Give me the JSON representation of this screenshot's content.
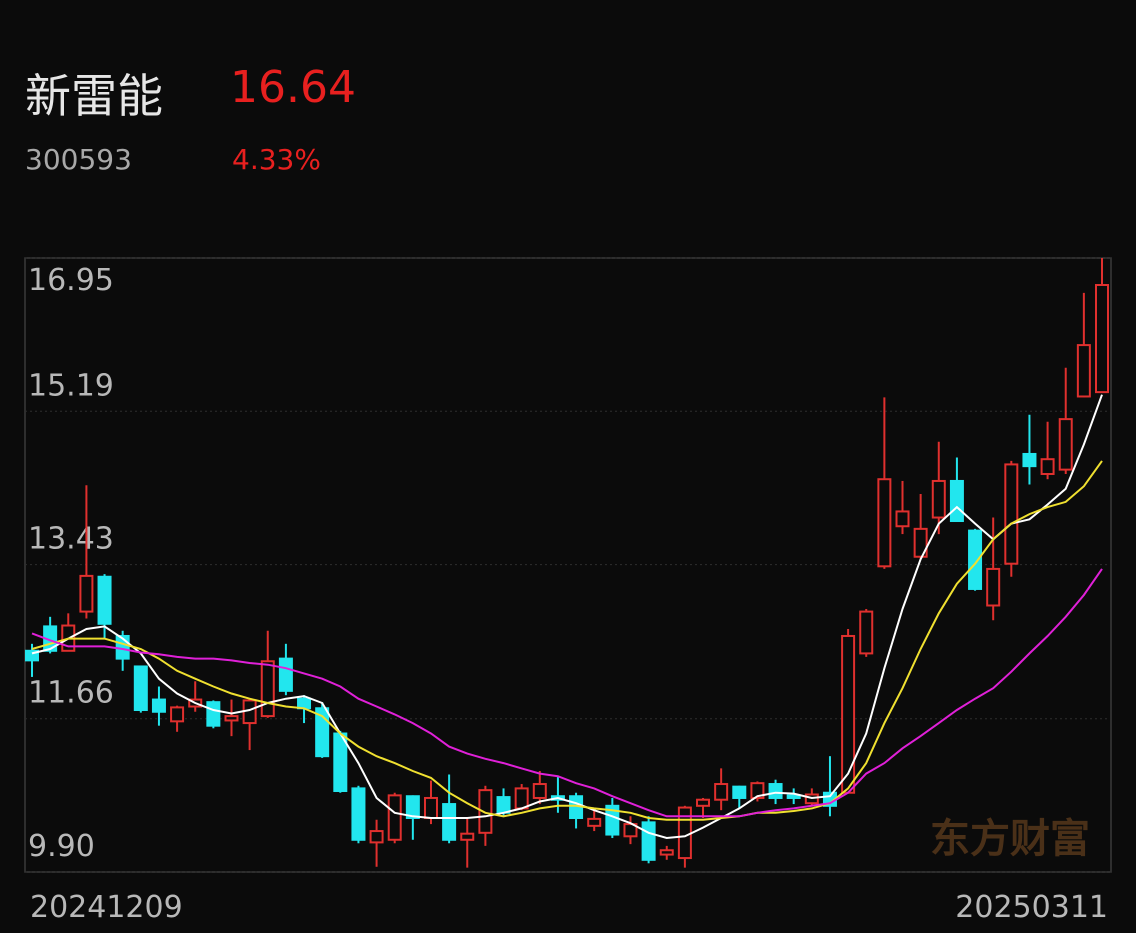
{
  "header": {
    "name": "新雷能",
    "price": "16.64",
    "code": "300593",
    "change": "4.33%"
  },
  "chart_data": {
    "type": "candlestick",
    "categories": [
      "20241209",
      null,
      null,
      null,
      null,
      null,
      null,
      null,
      null,
      null,
      null,
      null,
      null,
      null,
      null,
      null,
      null,
      null,
      null,
      null,
      null,
      null,
      null,
      null,
      null,
      null,
      null,
      null,
      null,
      null,
      null,
      null,
      null,
      null,
      null,
      null,
      null,
      null,
      null,
      null,
      null,
      null,
      null,
      null,
      null,
      null,
      null,
      null,
      null,
      null,
      null,
      null,
      null,
      null,
      null,
      null,
      null,
      null,
      null,
      "20250311"
    ],
    "open": [
      12.44,
      12.72,
      12.44,
      12.89,
      13.29,
      12.61,
      12.26,
      11.88,
      11.63,
      11.8,
      11.85,
      11.64,
      11.61,
      11.69,
      12.35,
      11.89,
      11.78,
      11.49,
      10.86,
      10.24,
      10.27,
      10.77,
      10.52,
      10.68,
      10.27,
      10.35,
      10.76,
      10.63,
      10.75,
      10.77,
      10.77,
      10.43,
      10.66,
      10.31,
      10.47,
      10.1,
      10.06,
      10.66,
      10.73,
      10.88,
      10.75,
      10.91,
      10.78,
      10.69,
      10.81,
      10.81,
      12.41,
      13.41,
      13.87,
      13.52,
      13.97,
      14.39,
      13.82,
      12.96,
      13.44,
      14.7,
      14.47,
      14.52,
      15.36,
      15.41
    ],
    "high": [
      12.52,
      12.83,
      12.87,
      14.34,
      13.32,
      12.67,
      12.26,
      12.03,
      11.81,
      12.09,
      11.87,
      11.88,
      11.89,
      12.67,
      12.52,
      11.93,
      11.85,
      11.52,
      10.89,
      10.5,
      10.81,
      10.78,
      10.95,
      11.02,
      10.52,
      10.89,
      10.86,
      10.91,
      11.06,
      10.99,
      10.81,
      10.61,
      10.75,
      10.54,
      10.54,
      10.2,
      10.66,
      10.75,
      11.09,
      10.89,
      10.94,
      10.96,
      10.86,
      10.86,
      11.23,
      12.69,
      12.92,
      15.35,
      14.39,
      14.24,
      14.84,
      14.66,
      13.84,
      13.97,
      14.62,
      15.15,
      15.07,
      15.69,
      16.55,
      16.95
    ],
    "low": [
      12.14,
      12.41,
      12.44,
      12.81,
      12.58,
      12.21,
      11.73,
      11.58,
      11.51,
      11.74,
      11.55,
      11.46,
      11.3,
      11.67,
      11.93,
      11.61,
      11.21,
      10.81,
      10.23,
      9.96,
      10.23,
      10.27,
      10.45,
      10.23,
      9.95,
      10.2,
      10.54,
      10.61,
      10.68,
      10.58,
      10.4,
      10.37,
      10.29,
      10.22,
      10.0,
      10.04,
      9.95,
      10.52,
      10.61,
      10.63,
      10.71,
      10.68,
      10.68,
      10.66,
      10.54,
      10.81,
      12.37,
      13.38,
      13.78,
      13.5,
      13.78,
      13.93,
      13.13,
      12.79,
      13.29,
      14.35,
      14.41,
      14.47,
      15.35,
      15.41
    ],
    "close": [
      12.33,
      12.44,
      12.73,
      13.3,
      12.75,
      12.35,
      11.76,
      11.74,
      11.79,
      11.88,
      11.58,
      11.69,
      11.87,
      12.32,
      11.98,
      11.78,
      11.23,
      10.83,
      10.27,
      10.37,
      10.78,
      10.52,
      10.75,
      10.27,
      10.34,
      10.84,
      10.58,
      10.86,
      10.91,
      10.73,
      10.52,
      10.51,
      10.33,
      10.45,
      10.04,
      10.15,
      10.64,
      10.73,
      10.91,
      10.75,
      10.92,
      10.75,
      10.75,
      10.79,
      10.66,
      12.61,
      12.89,
      14.41,
      14.04,
      13.84,
      14.39,
      13.93,
      13.15,
      13.38,
      14.58,
      14.56,
      14.64,
      15.1,
      15.95,
      16.64
    ],
    "up_color": "#e0302e",
    "down_color": "#22e6ee",
    "series": [
      {
        "color": "#ffffff",
        "values": [
          12.41,
          12.46,
          12.58,
          12.69,
          12.72,
          12.58,
          12.41,
          12.12,
          11.95,
          11.84,
          11.76,
          11.72,
          11.76,
          11.84,
          11.89,
          11.92,
          11.84,
          11.49,
          11.15,
          10.75,
          10.58,
          10.54,
          10.52,
          10.52,
          10.52,
          10.54,
          10.58,
          10.63,
          10.71,
          10.75,
          10.69,
          10.61,
          10.54,
          10.46,
          10.35,
          10.29,
          10.31,
          10.41,
          10.52,
          10.63,
          10.77,
          10.81,
          10.8,
          10.75,
          10.77,
          11.03,
          11.49,
          12.24,
          12.92,
          13.49,
          13.9,
          14.09,
          13.9,
          13.72,
          13.9,
          13.95,
          14.12,
          14.3,
          14.81,
          15.38
        ]
      },
      {
        "color": "#f0e030",
        "values": [
          12.46,
          12.52,
          12.58,
          12.58,
          12.58,
          12.52,
          12.46,
          12.35,
          12.21,
          12.12,
          12.03,
          11.95,
          11.89,
          11.84,
          11.8,
          11.78,
          11.69,
          11.49,
          11.34,
          11.23,
          11.15,
          11.06,
          10.98,
          10.81,
          10.69,
          10.58,
          10.54,
          10.58,
          10.63,
          10.66,
          10.66,
          10.63,
          10.61,
          10.58,
          10.52,
          10.5,
          10.5,
          10.5,
          10.52,
          10.54,
          10.58,
          10.58,
          10.6,
          10.63,
          10.69,
          10.86,
          11.15,
          11.61,
          12.01,
          12.46,
          12.87,
          13.21,
          13.44,
          13.72,
          13.9,
          14.01,
          14.09,
          14.15,
          14.33,
          14.62
        ]
      },
      {
        "color": "#e020d8",
        "values": [
          12.64,
          12.56,
          12.49,
          12.49,
          12.49,
          12.46,
          12.42,
          12.4,
          12.37,
          12.35,
          12.35,
          12.33,
          12.3,
          12.28,
          12.24,
          12.18,
          12.12,
          12.03,
          11.89,
          11.8,
          11.71,
          11.61,
          11.49,
          11.34,
          11.26,
          11.2,
          11.15,
          11.09,
          11.03,
          11.0,
          10.92,
          10.86,
          10.77,
          10.69,
          10.61,
          10.54,
          10.54,
          10.54,
          10.54,
          10.54,
          10.58,
          10.61,
          10.63,
          10.66,
          10.69,
          10.81,
          11.03,
          11.15,
          11.32,
          11.46,
          11.61,
          11.76,
          11.89,
          12.01,
          12.2,
          12.41,
          12.61,
          12.83,
          13.08,
          13.38
        ]
      }
    ],
    "ylim": [
      9.9,
      16.95
    ],
    "yticks": [
      16.95,
      15.19,
      13.43,
      11.66,
      {
        "value": 9.9,
        "label": "9.90"
      }
    ],
    "grid": true,
    "watermark": "东方财富"
  }
}
